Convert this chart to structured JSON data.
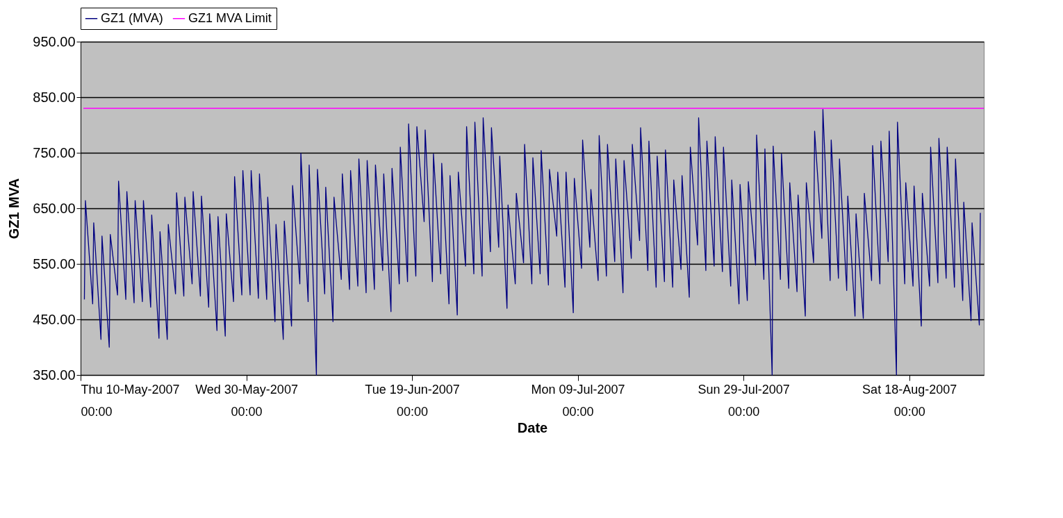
{
  "chart_data": {
    "type": "line",
    "xlabel": "Date",
    "ylabel": "GZ1 MVA",
    "xlim": [
      "2007-05-10T00:00",
      "2007-08-27T00:00"
    ],
    "xticks": [
      {
        "value": "2007-05-10T00:00",
        "label": "Thu 10-May-2007\n00:00"
      },
      {
        "value": "2007-05-30T00:00",
        "label": "Wed 30-May-2007\n00:00"
      },
      {
        "value": "2007-06-19T00:00",
        "label": "Tue 19-Jun-2007\n00:00"
      },
      {
        "value": "2007-07-09T00:00",
        "label": "Mon 09-Jul-2007\n00:00"
      },
      {
        "value": "2007-07-29T00:00",
        "label": "Sun 29-Jul-2007\n00:00"
      },
      {
        "value": "2007-08-18T00:00",
        "label": "Sat 18-Aug-2007\n00:00"
      }
    ],
    "ylim": [
      350,
      950
    ],
    "yticks": [
      {
        "value": 350,
        "label": "350.00"
      },
      {
        "value": 450,
        "label": "450.00"
      },
      {
        "value": 550,
        "label": "550.00"
      },
      {
        "value": 650,
        "label": "650.00"
      },
      {
        "value": 750,
        "label": "750.00"
      },
      {
        "value": 850,
        "label": "850.00"
      },
      {
        "value": 950,
        "label": "950.00"
      }
    ],
    "grid": "y",
    "legend": "top",
    "marker": "none",
    "line_style": "solid",
    "series": [
      {
        "name": "GZ1 (MVA)",
        "color": "#000080",
        "x": [
          "2007-05-10T11:00",
          "2007-05-10T14:00",
          "2007-05-11T11:00",
          "2007-05-11T14:00",
          "2007-05-12T11:00",
          "2007-05-12T14:00",
          "2007-05-13T11:00",
          "2007-05-13T14:00",
          "2007-05-14T11:00",
          "2007-05-14T14:00",
          "2007-05-15T11:00",
          "2007-05-15T14:00",
          "2007-05-16T11:00",
          "2007-05-16T14:00",
          "2007-05-17T11:00",
          "2007-05-17T14:00",
          "2007-05-18T11:00",
          "2007-05-18T14:00",
          "2007-05-19T11:00",
          "2007-05-19T14:00",
          "2007-05-20T11:00",
          "2007-05-20T14:00",
          "2007-05-21T11:00",
          "2007-05-21T14:00",
          "2007-05-22T11:00",
          "2007-05-22T14:00",
          "2007-05-23T11:00",
          "2007-05-23T14:00",
          "2007-05-24T11:00",
          "2007-05-24T14:00",
          "2007-05-25T11:00",
          "2007-05-25T14:00",
          "2007-05-26T11:00",
          "2007-05-26T14:00",
          "2007-05-27T11:00",
          "2007-05-27T14:00",
          "2007-05-28T11:00",
          "2007-05-28T14:00",
          "2007-05-29T11:00",
          "2007-05-29T14:00",
          "2007-05-30T11:00",
          "2007-05-30T14:00",
          "2007-05-31T11:00",
          "2007-05-31T14:00",
          "2007-06-01T11:00",
          "2007-06-01T14:00",
          "2007-06-02T11:00",
          "2007-06-02T14:00",
          "2007-06-03T11:00",
          "2007-06-03T14:00",
          "2007-06-04T11:00",
          "2007-06-04T14:00",
          "2007-06-05T11:00",
          "2007-06-05T14:00",
          "2007-06-06T11:00",
          "2007-06-06T14:00",
          "2007-06-07T11:00",
          "2007-06-07T14:00",
          "2007-06-08T11:00",
          "2007-06-08T14:00",
          "2007-06-09T11:00",
          "2007-06-09T14:00",
          "2007-06-10T11:00",
          "2007-06-10T14:00",
          "2007-06-11T11:00",
          "2007-06-11T14:00",
          "2007-06-12T11:00",
          "2007-06-12T14:00",
          "2007-06-13T11:00",
          "2007-06-13T14:00",
          "2007-06-14T11:00",
          "2007-06-14T14:00",
          "2007-06-15T11:00",
          "2007-06-15T14:00",
          "2007-06-16T11:00",
          "2007-06-16T14:00",
          "2007-06-17T11:00",
          "2007-06-17T14:00",
          "2007-06-18T11:00",
          "2007-06-18T14:00",
          "2007-06-19T11:00",
          "2007-06-19T14:00",
          "2007-06-20T11:00",
          "2007-06-20T14:00",
          "2007-06-21T11:00",
          "2007-06-21T14:00",
          "2007-06-22T11:00",
          "2007-06-22T14:00",
          "2007-06-23T11:00",
          "2007-06-23T14:00",
          "2007-06-24T11:00",
          "2007-06-24T14:00",
          "2007-06-25T11:00",
          "2007-06-25T14:00",
          "2007-06-26T11:00",
          "2007-06-26T14:00",
          "2007-06-27T11:00",
          "2007-06-27T14:00",
          "2007-06-28T11:00",
          "2007-06-28T14:00",
          "2007-06-29T11:00",
          "2007-06-29T14:00",
          "2007-06-30T11:00",
          "2007-06-30T14:00",
          "2007-07-01T11:00",
          "2007-07-01T14:00",
          "2007-07-02T11:00",
          "2007-07-02T14:00",
          "2007-07-03T11:00",
          "2007-07-03T14:00",
          "2007-07-04T11:00",
          "2007-07-04T14:00",
          "2007-07-05T11:00",
          "2007-07-05T14:00",
          "2007-07-06T11:00",
          "2007-07-06T14:00",
          "2007-07-07T11:00",
          "2007-07-07T14:00",
          "2007-07-08T11:00",
          "2007-07-08T14:00",
          "2007-07-09T11:00",
          "2007-07-09T14:00",
          "2007-07-10T11:00",
          "2007-07-10T14:00",
          "2007-07-11T11:00",
          "2007-07-11T14:00",
          "2007-07-12T11:00",
          "2007-07-12T14:00",
          "2007-07-13T11:00",
          "2007-07-13T14:00",
          "2007-07-14T11:00",
          "2007-07-14T14:00",
          "2007-07-15T11:00",
          "2007-07-15T14:00",
          "2007-07-16T11:00",
          "2007-07-16T14:00",
          "2007-07-17T11:00",
          "2007-07-17T14:00",
          "2007-07-18T11:00",
          "2007-07-18T14:00",
          "2007-07-19T11:00",
          "2007-07-19T14:00",
          "2007-07-20T11:00",
          "2007-07-20T14:00",
          "2007-07-21T11:00",
          "2007-07-21T14:00",
          "2007-07-22T11:00",
          "2007-07-22T14:00",
          "2007-07-23T11:00",
          "2007-07-23T14:00",
          "2007-07-24T11:00",
          "2007-07-24T14:00",
          "2007-07-25T11:00",
          "2007-07-25T14:00",
          "2007-07-26T11:00",
          "2007-07-26T14:00",
          "2007-07-27T11:00",
          "2007-07-27T14:00",
          "2007-07-28T11:00",
          "2007-07-28T14:00",
          "2007-07-29T11:00",
          "2007-07-29T14:00",
          "2007-07-30T11:00",
          "2007-07-30T14:00",
          "2007-07-31T11:00",
          "2007-07-31T14:00",
          "2007-08-01T11:00",
          "2007-08-01T14:00",
          "2007-08-02T11:00",
          "2007-08-02T14:00",
          "2007-08-03T11:00",
          "2007-08-03T14:00",
          "2007-08-04T11:00",
          "2007-08-04T14:00",
          "2007-08-05T11:00",
          "2007-08-05T14:00",
          "2007-08-06T11:00",
          "2007-08-06T14:00",
          "2007-08-07T11:00",
          "2007-08-07T14:00",
          "2007-08-08T11:00",
          "2007-08-08T14:00",
          "2007-08-09T11:00",
          "2007-08-09T14:00",
          "2007-08-10T11:00",
          "2007-08-10T14:00",
          "2007-08-11T11:00",
          "2007-08-11T14:00",
          "2007-08-12T11:00",
          "2007-08-12T14:00",
          "2007-08-13T11:00",
          "2007-08-13T14:00",
          "2007-08-14T11:00",
          "2007-08-14T14:00",
          "2007-08-15T11:00",
          "2007-08-15T14:00",
          "2007-08-16T11:00",
          "2007-08-16T14:00",
          "2007-08-17T11:00",
          "2007-08-17T14:00",
          "2007-08-18T11:00",
          "2007-08-18T14:00",
          "2007-08-19T11:00",
          "2007-08-19T14:00",
          "2007-08-20T11:00",
          "2007-08-20T14:00",
          "2007-08-21T11:00",
          "2007-08-21T14:00",
          "2007-08-22T11:00",
          "2007-08-22T14:00",
          "2007-08-23T11:00",
          "2007-08-23T14:00",
          "2007-08-24T11:00",
          "2007-08-24T14:00",
          "2007-08-25T11:00",
          "2007-08-25T14:00",
          "2007-08-26T11:00",
          "2007-08-26T14:00"
        ],
        "values": [
          486,
          664,
          478,
          624,
          414,
          600,
          400,
          603,
          494,
          699,
          486,
          680,
          480,
          664,
          482,
          664,
          472,
          638,
          416,
          608,
          414,
          621,
          496,
          678,
          492,
          670,
          514,
          680,
          492,
          672,
          472,
          640,
          430,
          635,
          420,
          640,
          482,
          707,
          494,
          718,
          494,
          718,
          488,
          712,
          486,
          670,
          446,
          621,
          414,
          627,
          438,
          691,
          514,
          749,
          482,
          728,
          350,
          720,
          496,
          688,
          446,
          670,
          522,
          712,
          504,
          718,
          510,
          739,
          498,
          736,
          504,
          728,
          538,
          712,
          464,
          722,
          514,
          760,
          518,
          802,
          528,
          797,
          626,
          791,
          518,
          748,
          532,
          731,
          478,
          709,
          458,
          715,
          546,
          797,
          532,
          805,
          528,
          813,
          572,
          795,
          580,
          744,
          470,
          656,
          514,
          677,
          552,
          765,
          514,
          741,
          532,
          754,
          512,
          720,
          600,
          715,
          508,
          715,
          462,
          704,
          542,
          773,
          580,
          684,
          520,
          781,
          528,
          765,
          554,
          739,
          498,
          736,
          560,
          765,
          592,
          795,
          538,
          771,
          508,
          744,
          518,
          755,
          508,
          701,
          540,
          709,
          490,
          760,
          584,
          813,
          538,
          771,
          546,
          779,
          536,
          760,
          510,
          701,
          478,
          693,
          484,
          698,
          548,
          782,
          522,
          757,
          350,
          762,
          522,
          748,
          506,
          696,
          500,
          674,
          456,
          696,
          552,
          789,
          596,
          828,
          520,
          773,
          524,
          739,
          502,
          672,
          456,
          640,
          452,
          677,
          520,
          763,
          514,
          771,
          554,
          789,
          350,
          805,
          514,
          696,
          510,
          690,
          438,
          677,
          510,
          760,
          516,
          776,
          524,
          760,
          508,
          739,
          484,
          661,
          448,
          624,
          440,
          642
        ]
      },
      {
        "name": "GZ1 MVA Limit",
        "color": "#ff00ff",
        "x": [
          "2007-05-10T08:00",
          "2007-08-27T00:00"
        ],
        "values": [
          830,
          830
        ]
      }
    ]
  }
}
